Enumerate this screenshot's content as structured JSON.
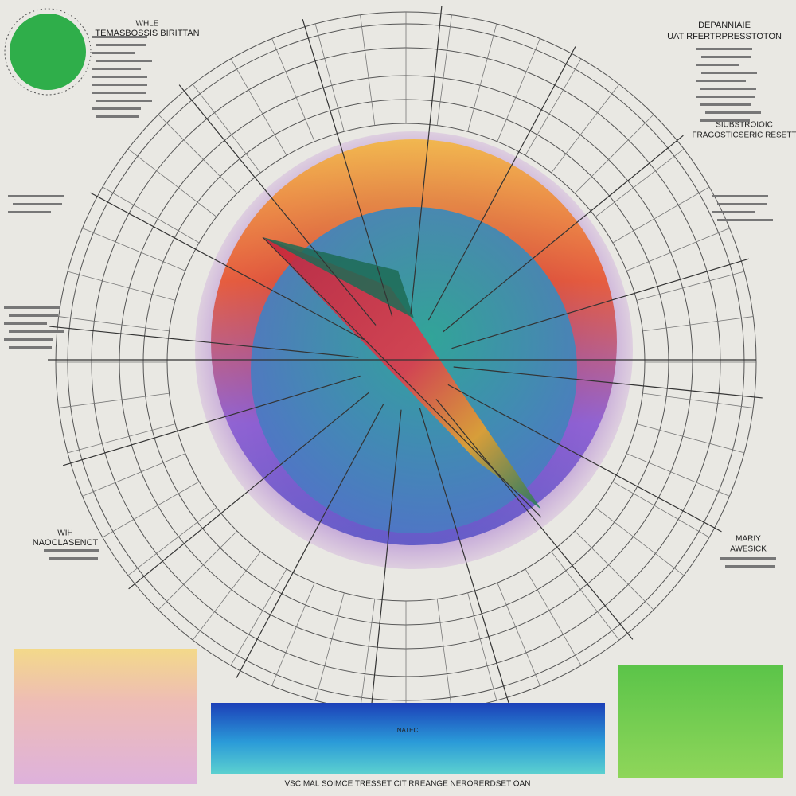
{
  "top_left": {
    "heading": "WHLE",
    "title": "TEMASBOSSIS BIRITTAN"
  },
  "top_right": {
    "heading": "DEPANNIAIE",
    "title": "UAT RFERTRPRESSTOTON",
    "subtitle": "SIUBSTROIOIC",
    "note": "FRAGOSTICSERIC RESETT"
  },
  "left_bottom": {
    "heading": "WIH",
    "title": "NAOCLASENCT"
  },
  "right_bottom": {
    "heading": "MARIY",
    "title": "AWESICK"
  },
  "blue_panel": {
    "label": "NATEC"
  },
  "footer": {
    "caption": "VSCIMAL SOIMCE TRESSET CIT RREANGE NERORERDSET OAN"
  }
}
